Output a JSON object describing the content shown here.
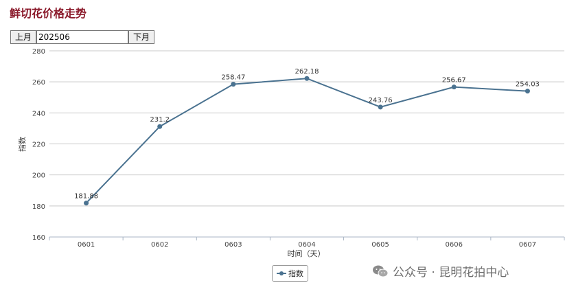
{
  "page": {
    "title": "鲜切花价格走势"
  },
  "controls": {
    "prev_label": "上月",
    "month_value": "202506",
    "next_label": "下月"
  },
  "chart_data": {
    "type": "line",
    "title": "鲜切花价格走势",
    "xlabel": "时间（天）",
    "ylabel": "指数",
    "categories": [
      "0601",
      "0602",
      "0603",
      "0604",
      "0605",
      "0606",
      "0607"
    ],
    "series": [
      {
        "name": "指数",
        "values": [
          181.88,
          231.2,
          258.47,
          262.18,
          243.76,
          256.67,
          254.03
        ],
        "labels": [
          "181.88",
          "231.2",
          "258.47",
          "262.18",
          "243.76",
          "256.67",
          "254.03"
        ]
      }
    ],
    "ylim": [
      160,
      280
    ],
    "yticks": [
      160,
      180,
      200,
      220,
      240,
      260,
      280
    ],
    "grid": true,
    "legend": "bottom-center",
    "color": "#4a7290"
  },
  "legend": {
    "label": "指数"
  },
  "watermark": {
    "text": "公众号 · 昆明花拍中心"
  }
}
